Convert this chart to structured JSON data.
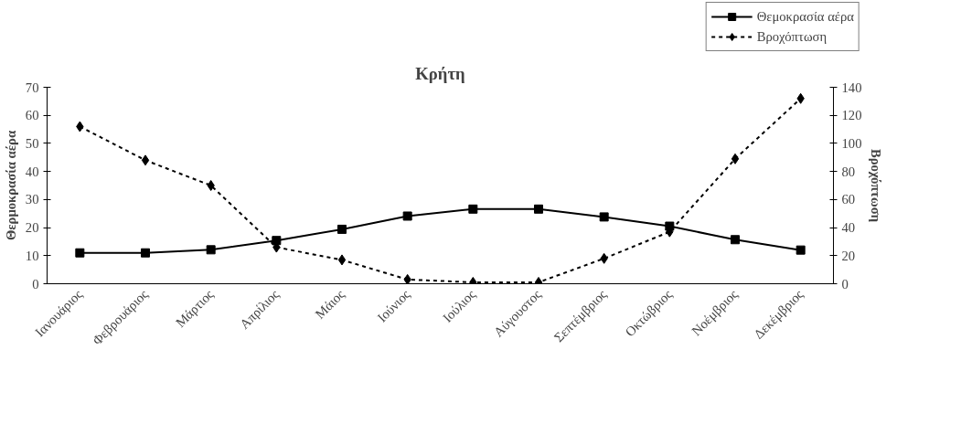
{
  "chart_data": {
    "type": "line",
    "title": "Κρήτη",
    "ylabel": "Θερμοκρασία αέρα",
    "y2label": "Βροχόπτωση",
    "categories": [
      "Ιανουάριος",
      "Φεβρουάριος",
      "Μάρτιος",
      "Απρίλιος",
      "Μάιος",
      "Ιούνιος",
      "Ιούλιος",
      "Αύγουστος",
      "Σεπτέμβριος",
      "Οκτώβριος",
      "Νοέμβριος",
      "Δεκέμβριος"
    ],
    "series": [
      {
        "name": "Θεμοκρασία αέρα",
        "color": "#000000",
        "marker": "square",
        "line_style": "solid",
        "values": [
          11.0,
          11.0,
          12.1,
          15.4,
          19.4,
          24.1,
          26.6,
          26.6,
          23.8,
          20.5,
          15.7,
          12.0
        ]
      },
      {
        "name": "Βροχόπτωση",
        "color": "#000000",
        "marker": "diamond",
        "line_style": "dashed",
        "axis": "y2",
        "values": [
          112,
          88,
          70,
          26,
          17,
          3,
          1,
          1,
          18,
          37,
          89,
          132
        ]
      }
    ],
    "ylim": [
      0,
      70
    ],
    "yticks": [
      0,
      10,
      20,
      30,
      40,
      50,
      60,
      70
    ],
    "y2lim": [
      0,
      140
    ],
    "y2ticks": [
      0,
      20,
      40,
      60,
      80,
      100,
      120,
      140
    ],
    "grid": false,
    "legend": "top right"
  }
}
